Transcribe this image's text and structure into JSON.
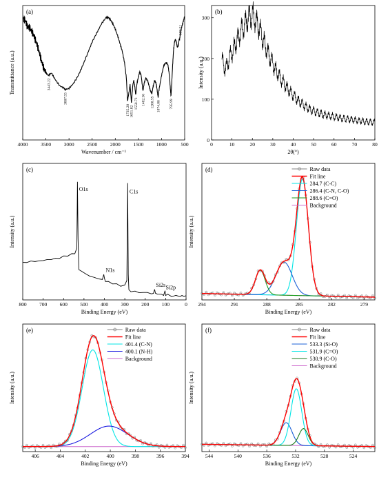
{
  "figure": {
    "panels": [
      {
        "id": "a",
        "label": "(a)",
        "type": "line",
        "xlabel": "Wavenumber / cm⁻¹",
        "ylabel": "Transmittance (a.u.)",
        "xlim": [
          4000,
          500
        ],
        "xticks": [
          "4000",
          "3500",
          "3000",
          "2500",
          "2000",
          "1500",
          "1000",
          "500"
        ],
        "peak_labels": [
          "3443.22",
          "3087.55",
          "1735.20",
          "1651.02",
          "1558.73",
          "1402.36",
          "1208.55",
          "1074.08",
          "795.99",
          "609.21"
        ],
        "series": [
          {
            "color": "#000000",
            "x": [
              3990,
              3950,
              3900,
              3850,
              3800,
              3750,
              3700,
              3650,
              3600,
              3550,
              3500,
              3443,
              3380,
              3300,
              3200,
              3100,
              3088,
              3000,
              2900,
              2800,
              2700,
              2600,
              2500,
              2400,
              2300,
              2200,
              2150,
              2100,
              2050,
              2000,
              1950,
              1900,
              1850,
              1800,
              1760,
              1735,
              1700,
              1680,
              1651,
              1620,
              1600,
              1580,
              1559,
              1530,
              1500,
              1470,
              1440,
              1402,
              1370,
              1340,
              1300,
              1270,
              1240,
              1208,
              1180,
              1150,
              1120,
              1100,
              1074,
              1050,
              1000,
              950,
              900,
              860,
              830,
              810,
              796,
              780,
              760,
              740,
              720,
              700,
              680,
              660,
              640,
              620,
              609,
              590,
              560,
              530,
              500
            ],
            "y": [
              0.94,
              0.93,
              0.88,
              0.87,
              0.84,
              0.8,
              0.75,
              0.69,
              0.62,
              0.56,
              0.52,
              0.5,
              0.52,
              0.47,
              0.42,
              0.4,
              0.39,
              0.4,
              0.44,
              0.5,
              0.58,
              0.67,
              0.76,
              0.83,
              0.9,
              0.95,
              0.95,
              0.93,
              0.9,
              0.86,
              0.81,
              0.75,
              0.69,
              0.6,
              0.48,
              0.3,
              0.38,
              0.43,
              0.29,
              0.43,
              0.46,
              0.42,
              0.35,
              0.44,
              0.49,
              0.53,
              0.5,
              0.38,
              0.45,
              0.48,
              0.46,
              0.42,
              0.38,
              0.36,
              0.42,
              0.46,
              0.44,
              0.4,
              0.33,
              0.4,
              0.5,
              0.58,
              0.6,
              0.58,
              0.5,
              0.4,
              0.34,
              0.44,
              0.58,
              0.7,
              0.76,
              0.78,
              0.76,
              0.72,
              0.73,
              0.78,
              0.78,
              0.84,
              0.88,
              0.92,
              0.96
            ]
          }
        ]
      },
      {
        "id": "b",
        "label": "(b)",
        "type": "line",
        "xlabel": "2θ(°)",
        "ylabel": "Intensity (a.u.)",
        "xlim": [
          0,
          80
        ],
        "ylim": [
          0,
          330
        ],
        "xticks": [
          "0",
          "10",
          "20",
          "30",
          "40",
          "50",
          "60",
          "70",
          "80"
        ],
        "yticks": [
          "0",
          "100",
          "200",
          "300"
        ],
        "series": [
          {
            "color": "#000000",
            "x": [
              5,
              6,
              7,
              8,
              9,
              10,
              11,
              12,
              13,
              14,
              15,
              16,
              17,
              18,
              19,
              20,
              21,
              22,
              23,
              24,
              25,
              26,
              27,
              28,
              29,
              30,
              31,
              32,
              33,
              34,
              35,
              36,
              37,
              38,
              39,
              40,
              41,
              42,
              43,
              44,
              45,
              46,
              47,
              48,
              49,
              50,
              51,
              52,
              53,
              54,
              55,
              56,
              57,
              58,
              59,
              60,
              61,
              62,
              63,
              64,
              65,
              66,
              67,
              68,
              69,
              70,
              71,
              72,
              73,
              74,
              75,
              76,
              77,
              78,
              79,
              80
            ],
            "y": [
              200,
              180,
              175,
              190,
              205,
              215,
              225,
              238,
              250,
              262,
              272,
              282,
              290,
              298,
              304,
              305,
              300,
              290,
              278,
              265,
              250,
              236,
              222,
              210,
              198,
              187,
              176,
              167,
              158,
              150,
              142,
              135,
              128,
              121,
              115,
              110,
              104,
              99,
              94,
              90,
              86,
              82,
              79,
              76,
              73,
              71,
              69,
              67,
              65,
              64,
              62,
              61,
              60,
              59,
              58,
              57,
              56,
              55,
              54,
              53,
              52,
              52,
              51,
              50,
              50,
              49,
              48,
              47,
              47,
              46,
              45,
              45,
              44,
              44,
              43,
              43
            ]
          }
        ]
      },
      {
        "id": "c",
        "label": "(c)",
        "type": "line",
        "xlabel": "Binding Energy (eV)",
        "ylabel": "Intensity (a.u.)",
        "xlim": [
          800,
          0
        ],
        "xticks": [
          "800",
          "700",
          "600",
          "500",
          "400",
          "300",
          "200",
          "100",
          "0"
        ],
        "peak_labels": [
          "O1s",
          "C1s",
          "N1s",
          "Si2s",
          "Si2p"
        ],
        "series": [
          {
            "color": "#000000",
            "x": [
              800,
              780,
              760,
              740,
              720,
              700,
              680,
              660,
              640,
              620,
              600,
              580,
              560,
              545,
              535,
              532,
              529,
              525,
              510,
              490,
              470,
              450,
              430,
              410,
              403,
              400,
              395,
              380,
              360,
              340,
              320,
              300,
              290,
              286,
              283,
              280,
              270,
              250,
              230,
              210,
              190,
              170,
              160,
              154,
              150,
              140,
              120,
              110,
              103,
              100,
              90,
              70,
              50,
              30,
              20,
              10,
              0
            ],
            "y": [
              0.3,
              0.3,
              0.31,
              0.31,
              0.31,
              0.32,
              0.32,
              0.33,
              0.33,
              0.34,
              0.35,
              0.36,
              0.37,
              0.38,
              0.42,
              1.0,
              0.5,
              0.24,
              0.22,
              0.2,
              0.18,
              0.17,
              0.16,
              0.15,
              0.2,
              0.16,
              0.14,
              0.13,
              0.12,
              0.11,
              0.1,
              0.1,
              0.15,
              0.98,
              0.2,
              0.06,
              0.05,
              0.05,
              0.04,
              0.04,
              0.04,
              0.03,
              0.03,
              0.07,
              0.03,
              0.03,
              0.02,
              0.02,
              0.05,
              0.02,
              0.02,
              0.01,
              0.01,
              0.01,
              0.01,
              0.01,
              0.01
            ]
          }
        ]
      },
      {
        "id": "d",
        "label": "(d)",
        "type": "line",
        "xlabel": "Binding Energy (eV)",
        "ylabel": "Intensity (a.u.)",
        "xlim": [
          294,
          278
        ],
        "xticks": [
          "294",
          "291",
          "288",
          "285",
          "282",
          "279"
        ],
        "legend": [
          "Raw data",
          "Fit line",
          "284.7 (C-C)",
          "286.4 (C-N, C-O)",
          "288.6 (C=O)",
          "Background"
        ],
        "colors": {
          "raw": "#808080",
          "fit": "#ff0000",
          "c1": "#00e5e5",
          "c2": "#1a5fd6",
          "c3": "#1a9a1a",
          "bg": "#cc66cc"
        },
        "components": [
          {
            "center": 284.7,
            "height": 0.95,
            "sigma": 0.55
          },
          {
            "center": 286.4,
            "height": 0.27,
            "sigma": 0.75
          },
          {
            "center": 288.6,
            "height": 0.2,
            "sigma": 0.45
          }
        ],
        "background": [
          0.03,
          0.0
        ]
      },
      {
        "id": "e",
        "label": "(e)",
        "type": "line",
        "xlabel": "Binding Energy (eV)",
        "ylabel": "Intensity (a.u.)",
        "xlim": [
          407,
          394
        ],
        "xticks": [
          "406",
          "404",
          "402",
          "400",
          "398",
          "396",
          "394"
        ],
        "legend": [
          "Raw data",
          "Fit line",
          "401.4 (C-N)",
          "400.1 (N-H)",
          "Background"
        ],
        "colors": {
          "raw": "#808080",
          "fit": "#ff0000",
          "c1": "#00e5e5",
          "c2": "#1a1ae0",
          "bg": "#cc66cc"
        },
        "components": [
          {
            "center": 401.4,
            "height": 0.85,
            "sigma": 0.85
          },
          {
            "center": 400.1,
            "height": 0.18,
            "sigma": 1.5
          }
        ],
        "background": [
          0.02,
          0.02
        ]
      },
      {
        "id": "f",
        "label": "(f)",
        "type": "line",
        "xlabel": "Binding Energy (eV)",
        "ylabel": "Intensity (a.u.)",
        "xlim": [
          545,
          521
        ],
        "xticks": [
          "544",
          "540",
          "536",
          "532",
          "528",
          "524"
        ],
        "legend": [
          "Raw data",
          "Fit line",
          "533.3 (Si-O)",
          "531.9 (C=O)",
          "530.9 (C-O)",
          "Background"
        ],
        "colors": {
          "raw": "#808080",
          "fit": "#ff0000",
          "c1": "#1a5fd6",
          "c2": "#00e5e5",
          "c3": "#1a7a1a",
          "bg": "#cc66cc"
        },
        "components": [
          {
            "center": 533.3,
            "height": 0.2,
            "sigma": 0.8
          },
          {
            "center": 531.9,
            "height": 0.5,
            "sigma": 0.75
          },
          {
            "center": 530.9,
            "height": 0.15,
            "sigma": 0.65
          }
        ],
        "background": [
          0.04,
          0.02
        ]
      }
    ]
  }
}
